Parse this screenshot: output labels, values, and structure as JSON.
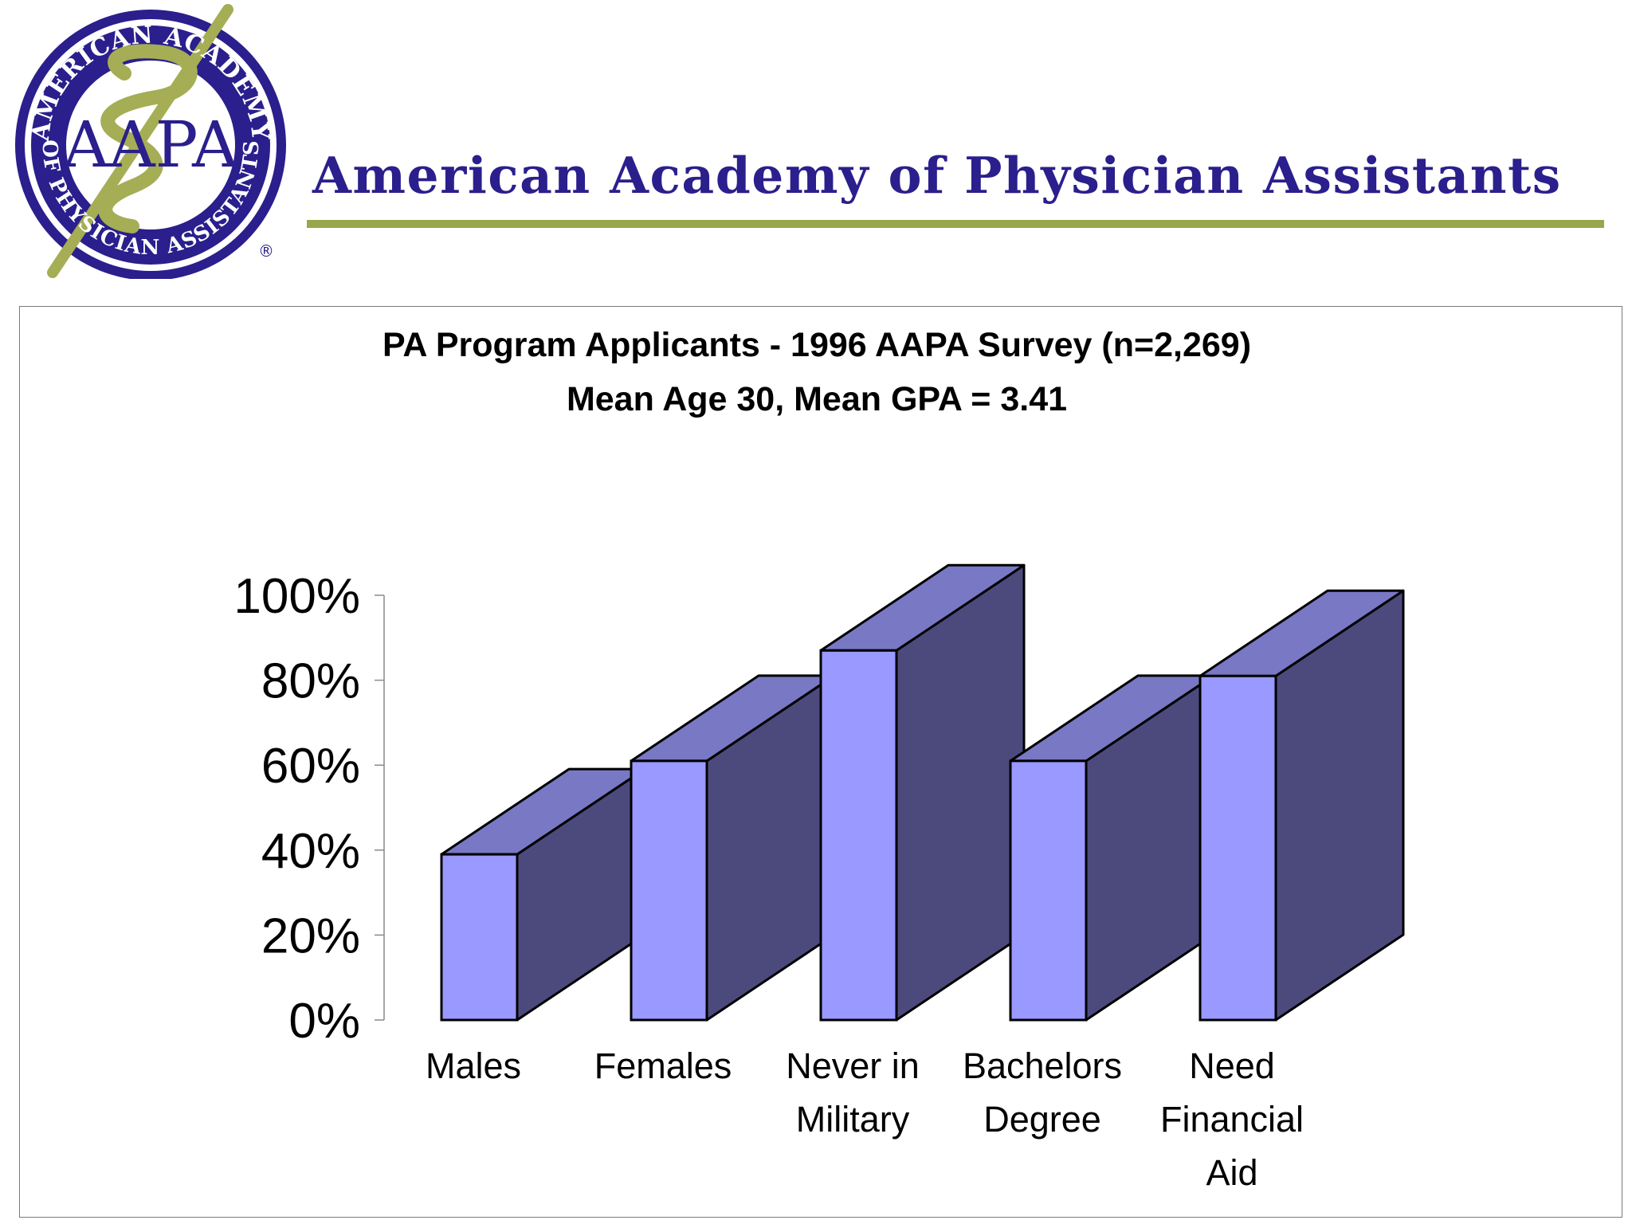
{
  "header": {
    "org_name": "American Academy of Physician Assistants",
    "logo": {
      "top_arc_text": "AMERICAN ACADEMY",
      "bottom_arc_text": "OF PHYSICIAN ASSISTANTS",
      "center_text": "AAPA",
      "registered_mark": "®",
      "ring_color": "#2a1f8c",
      "caduceus_color": "#a5ad55"
    },
    "rule_color": "#9aa64c"
  },
  "chart_data": {
    "type": "bar",
    "style": "3d",
    "title": "PA Program Applicants - 1996 AAPA Survey (n=2,269)",
    "subtitle": "Mean Age 30, Mean GPA = 3.41",
    "categories": [
      [
        "Males"
      ],
      [
        "Females"
      ],
      [
        "Never in",
        "Military"
      ],
      [
        "Bachelors",
        "Degree"
      ],
      [
        "Need",
        "Financial",
        "Aid"
      ]
    ],
    "values": [
      39,
      61,
      87,
      61,
      81
    ],
    "ylim": [
      0,
      100
    ],
    "yticks": [
      0,
      20,
      40,
      60,
      80,
      100
    ],
    "ytick_labels": [
      "0%",
      "20%",
      "40%",
      "60%",
      "80%",
      "100%"
    ],
    "xlabel": "",
    "ylabel": "",
    "grid": false,
    "legend": "none",
    "colors": {
      "front": "#9999ff",
      "top": "#7878c4",
      "side": "#4c4a7d",
      "edge": "#000000"
    }
  }
}
